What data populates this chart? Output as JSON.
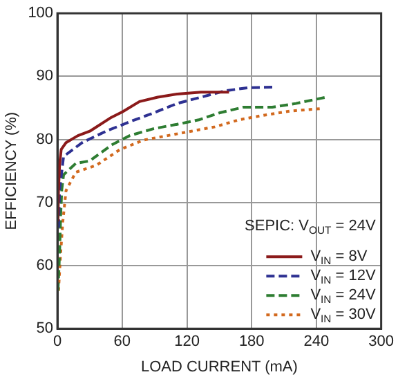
{
  "chart_data": {
    "type": "line",
    "xlabel": "LOAD CURRENT (mA)",
    "ylabel": "EFFICIENCY (%)",
    "xlim": [
      0,
      300
    ],
    "xticks": [
      0,
      60,
      120,
      180,
      240,
      300
    ],
    "ylim": [
      50,
      100
    ],
    "yticks": [
      50,
      60,
      70,
      80,
      90,
      100
    ],
    "grid": true,
    "legend": "bottom right",
    "marker": "none",
    "annotations": [
      "SEPIC: V$_{OUT}$ = 24V"
    ],
    "series": [
      {
        "name": "V$_{IN}$ = 8V",
        "color": "#8b1a1a",
        "line_style": "solid",
        "x": [
          0.5,
          1,
          2,
          3.5,
          8,
          19,
          30,
          50,
          60.5,
          76,
          93,
          111,
          133,
          159
        ],
        "values": [
          67,
          72,
          76,
          78.4,
          79.5,
          80.6,
          81.3,
          83.5,
          84.4,
          86,
          86.7,
          87.2,
          87.5,
          87.5
        ]
      },
      {
        "name": "V$_{IN}$ = 12V",
        "color": "#2e3192",
        "line_style": "dashed",
        "x": [
          1,
          2,
          5.7,
          23,
          45,
          67,
          89,
          111,
          133,
          155,
          177,
          201
        ],
        "values": [
          66,
          72,
          77.3,
          79.5,
          81.3,
          82.8,
          84.2,
          85.7,
          86.7,
          87.7,
          88.2,
          88.3
        ]
      },
      {
        "name": "V$_{IN}$ = 24V",
        "color": "#2e7d32",
        "line_style": "dashed",
        "x": [
          0.5,
          2,
          3,
          4,
          5.7,
          17,
          30,
          50,
          67,
          89,
          111,
          131,
          150,
          172,
          199,
          221,
          249
        ],
        "values": [
          56,
          62,
          68,
          72,
          74.4,
          76.2,
          76.6,
          79.1,
          80.6,
          81.7,
          82.4,
          83.1,
          84.2,
          85.1,
          85.1,
          85.7,
          86.7
        ]
      },
      {
        "name": "V$_{IN}$ = 30V",
        "color": "#d2691e",
        "line_style": "dotted",
        "x": [
          1,
          3,
          5,
          8,
          17,
          36,
          58,
          80,
          102,
          124,
          146,
          168,
          190,
          216,
          245
        ],
        "values": [
          56,
          62,
          67,
          71.9,
          74.8,
          75.9,
          78.4,
          79.9,
          80.6,
          81.3,
          82,
          83.1,
          83.8,
          84.5,
          84.9
        ]
      }
    ]
  }
}
